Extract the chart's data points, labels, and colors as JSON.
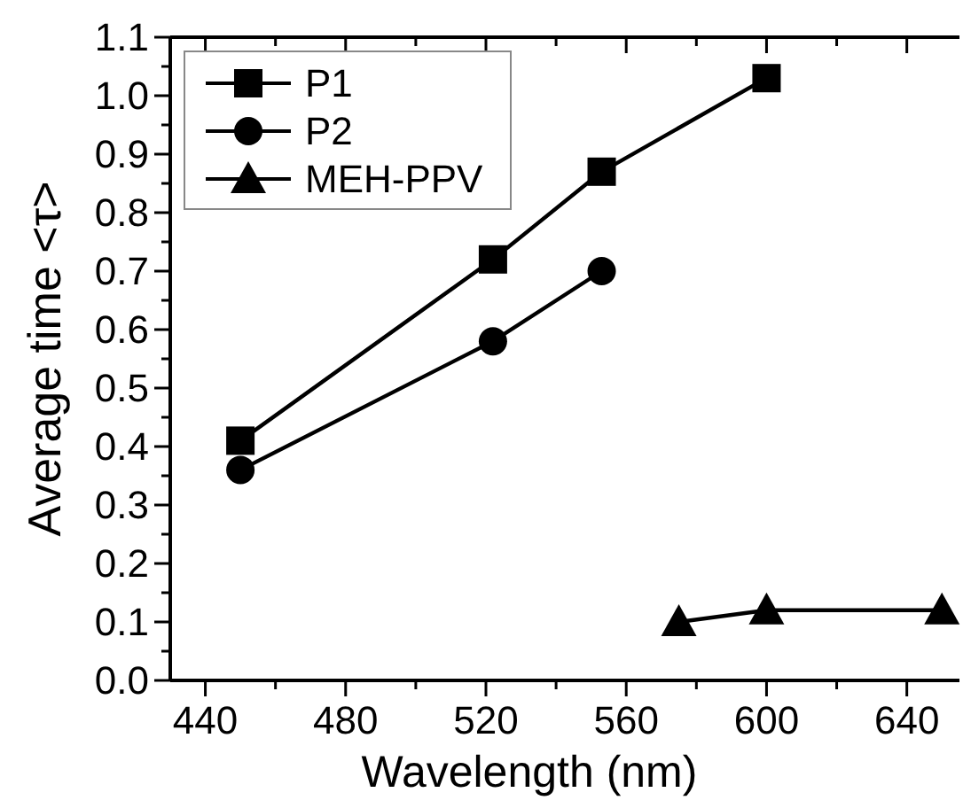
{
  "chart_data": {
    "type": "line",
    "xlabel": "Wavelength (nm)",
    "ylabel": "Average time <τ>",
    "xlim": [
      430,
      655
    ],
    "xticks": [
      440,
      {
        "value": 460,
        "label": null
      },
      480,
      {
        "value": 500,
        "label": null
      },
      520,
      {
        "value": 540,
        "label": null
      },
      560,
      {
        "value": 580,
        "label": null
      },
      600,
      {
        "value": 620,
        "label": null
      },
      640
    ],
    "ylim": [
      0,
      1.1
    ],
    "yticks": [
      {
        "value": 0,
        "label": "0.0"
      },
      {
        "value": 0.05,
        "label": null
      },
      0.1,
      {
        "value": 0.15,
        "label": null
      },
      0.2,
      {
        "value": 0.25,
        "label": null
      },
      0.3,
      {
        "value": 0.35,
        "label": null
      },
      0.4,
      {
        "value": 0.45,
        "label": null
      },
      0.5,
      {
        "value": 0.55,
        "label": null
      },
      0.6,
      {
        "value": 0.65,
        "label": null
      },
      0.7,
      {
        "value": 0.75,
        "label": null
      },
      0.8,
      {
        "value": 0.85,
        "label": null
      },
      0.9,
      {
        "value": 0.95,
        "label": null
      },
      {
        "value": 1,
        "label": "1.0"
      },
      {
        "value": 1.05,
        "label": null
      },
      1.1
    ],
    "legend": "top left",
    "grid": false,
    "series": [
      {
        "name": "P1",
        "color": "#000000",
        "marker": "square",
        "x": [
          450,
          522,
          553,
          600
        ],
        "values": [
          0.41,
          0.72,
          0.87,
          1.03
        ]
      },
      {
        "name": "P2",
        "color": "#000000",
        "marker": "circle",
        "x": [
          450,
          522,
          553
        ],
        "values": [
          0.36,
          0.58,
          0.7
        ]
      },
      {
        "name": "MEH-PPV",
        "color": "#000000",
        "marker": "triangle",
        "x": [
          575,
          600,
          650
        ],
        "values": [
          0.1,
          0.12,
          0.12
        ]
      }
    ]
  }
}
